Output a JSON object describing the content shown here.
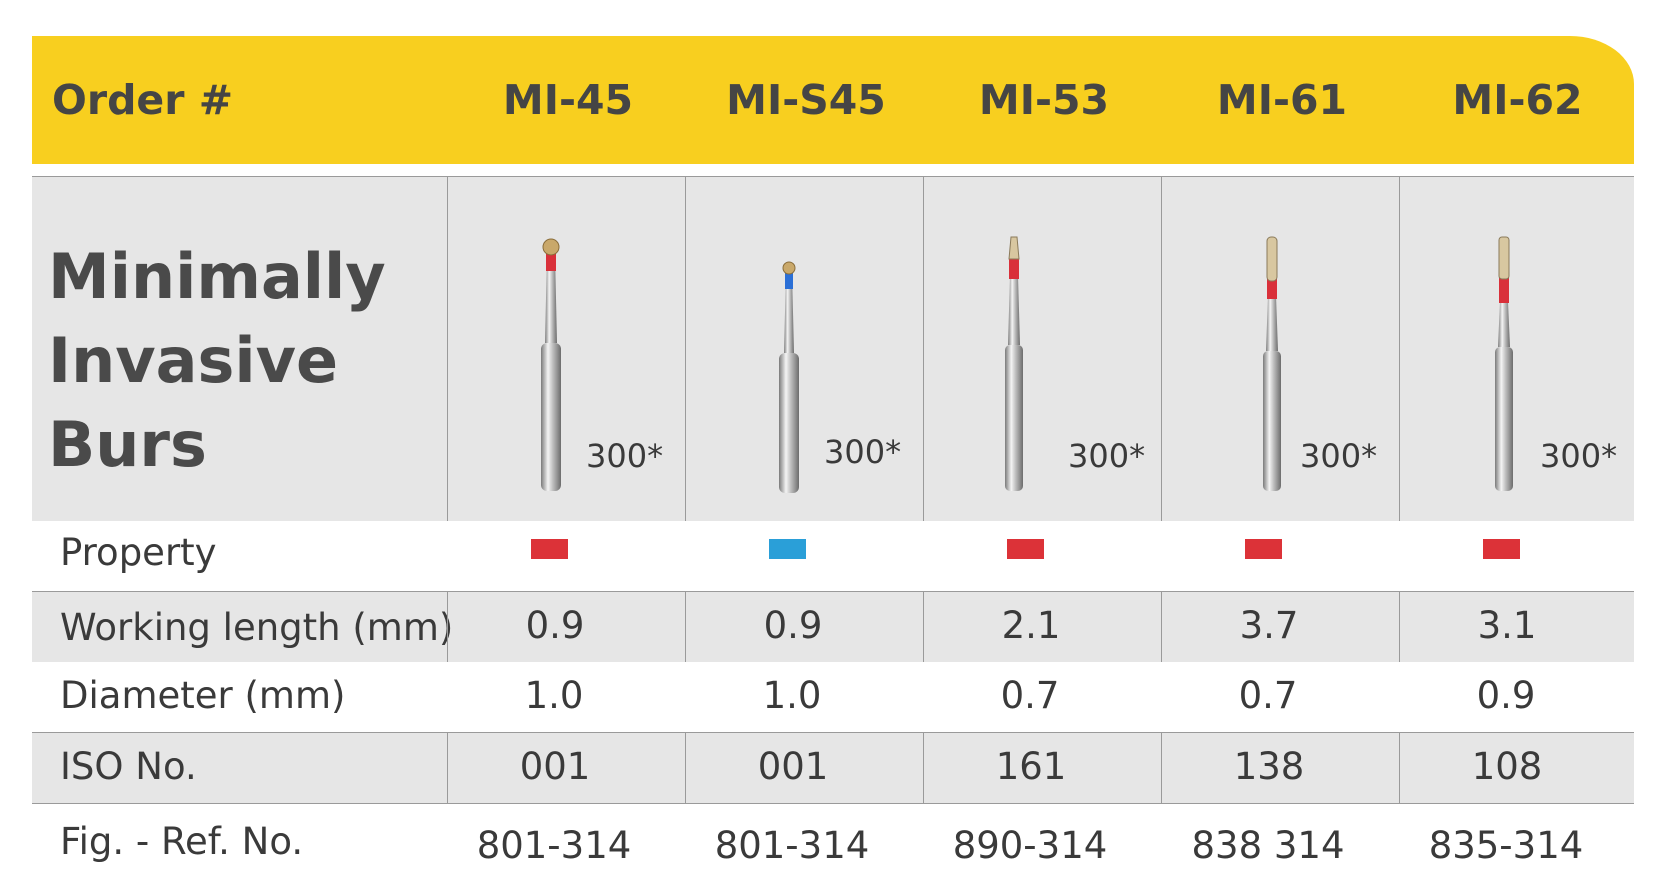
{
  "header": {
    "order_label": "Order #",
    "codes": [
      "MI-45",
      "MI-S45",
      "MI-53",
      "MI-61",
      "MI-62"
    ]
  },
  "product": {
    "title_lines": [
      "Minimally",
      "Invasive",
      "Burs"
    ],
    "quantities": [
      "300*",
      "300*",
      "300*",
      "300*",
      "300*"
    ],
    "burs": [
      {
        "head": "round",
        "band_color": "#d9303a"
      },
      {
        "head": "round",
        "band_color": "#2b6fd6"
      },
      {
        "head": "cone",
        "band_color": "#d9303a"
      },
      {
        "head": "cylinder",
        "band_color": "#d9303a"
      },
      {
        "head": "cylinder",
        "band_color": "#d9303a"
      }
    ]
  },
  "property": {
    "label": "Property",
    "colors": [
      "#dc3238",
      "#2a9fd8",
      "#dc3238",
      "#dc3238",
      "#dc3238"
    ]
  },
  "working_length": {
    "label": "Working length (mm)",
    "values": [
      "0.9",
      "0.9",
      "2.1",
      "3.7",
      "3.1"
    ]
  },
  "diameter": {
    "label": "Diameter (mm)",
    "values": [
      "1.0",
      "1.0",
      "0.7",
      "0.7",
      "0.9"
    ]
  },
  "iso": {
    "label": "ISO No.",
    "values": [
      "001",
      "001",
      "161",
      "138",
      "108"
    ]
  },
  "fig_ref": {
    "label": "Fig. - Ref. No.",
    "values": [
      "801-314",
      "801-314",
      "890-314",
      "838 314",
      "835-314"
    ]
  }
}
